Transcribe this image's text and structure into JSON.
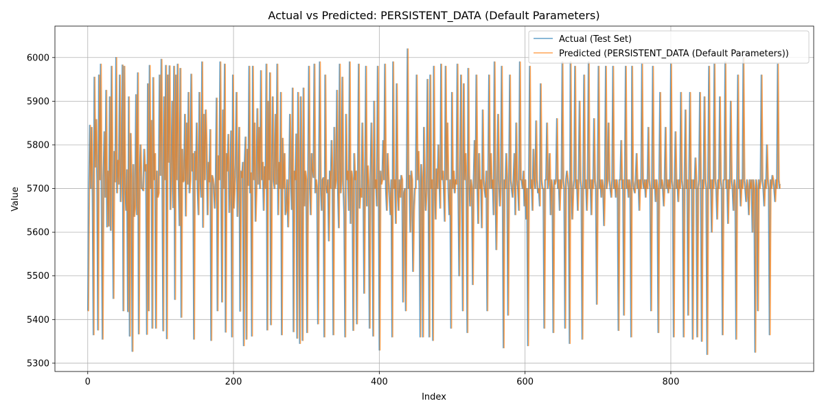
{
  "chart_data": {
    "type": "line",
    "title": "Actual vs Predicted: PERSISTENT_DATA (Default Parameters)",
    "xlabel": "Index",
    "ylabel": "Value",
    "xlim": [
      -45,
      996
    ],
    "ylim": [
      5281,
      6072
    ],
    "x_ticks": [
      0,
      200,
      400,
      600,
      800
    ],
    "y_ticks": [
      5300,
      5400,
      5500,
      5600,
      5700,
      5800,
      5900,
      6000
    ],
    "grid": true,
    "legend_position": "upper right",
    "n_points": 951,
    "series": [
      {
        "name": "Actual (Test Set)",
        "color": "#1f77b4",
        "opacity": 0.7,
        "values": [
          5420,
          5690,
          5845,
          5700,
          5840,
          5681,
          5365,
          5955,
          5749,
          5858,
          5720,
          5376,
          5960,
          5720,
          5985,
          5650,
          5355,
          5723,
          5830,
          5680,
          5925,
          5612,
          5740,
          5614,
          5910,
          5604,
          5980,
          5720,
          5448,
          5785,
          5715,
          6000,
          5690,
          5765,
          5710,
          5960,
          5670,
          5740,
          5983,
          5420,
          5980,
          5710,
          5650,
          5743,
          5418,
          5910,
          5362,
          5826,
          5720,
          5327,
          5755,
          5636,
          5660,
          5915,
          5640,
          5965,
          5367,
          5720,
          5800,
          5700,
          5700,
          5695,
          5790,
          5740,
          5755,
          5366,
          5940,
          5420,
          5982,
          5700,
          5856,
          5380,
          5954,
          5720,
          5780,
          5380,
          5740,
          5680,
          5690,
          5960,
          5730,
          5996,
          5720,
          5374,
          5910,
          5720,
          5982,
          5356,
          5960,
          5760,
          5981,
          5652,
          5730,
          5900,
          5656,
          5980,
          5446,
          5960,
          5720,
          5985,
          5720,
          5615,
          5975,
          5405,
          5790,
          5715,
          5720,
          5870,
          5637,
          5850,
          5710,
          5920,
          5690,
          5720,
          5962,
          5740,
          5780,
          5355,
          5785,
          5720,
          5850,
          5700,
          5640,
          5920,
          5720,
          5680,
          5990,
          5611,
          5870,
          5720,
          5880,
          5790,
          5640,
          5760,
          5715,
          5835,
          5352,
          5730,
          5722,
          5700,
          5655,
          5720,
          5907,
          5420,
          5775,
          5720,
          5990,
          5720,
          5440,
          5880,
          5700,
          5985,
          5371,
          5780,
          5740,
          5824,
          5645,
          5700,
          5832,
          5360,
          5960,
          5655,
          5700,
          5755,
          5920,
          5636,
          5710,
          5840,
          5419,
          5740,
          5725,
          5760,
          5340,
          5760,
          5818,
          5355,
          5790,
          5707,
          5980,
          5690,
          5736,
          5362,
          5980,
          5720,
          5850,
          5625,
          5700,
          5883,
          5710,
          5840,
          5700,
          5970,
          5720,
          5760,
          5650,
          5750,
          5700,
          5985,
          5376,
          5900,
          5720,
          5965,
          5388,
          5720,
          5910,
          5720,
          5700,
          5870,
          5710,
          5985,
          5640,
          5760,
          5700,
          5920,
          5365,
          5815,
          5700,
          5780,
          5640,
          5650,
          5720,
          5612,
          5700,
          5870,
          5738,
          5652,
          5930,
          5372,
          5740,
          5720,
          5825,
          5357,
          5920,
          5720,
          5345,
          5910,
          5720,
          5352,
          5930,
          5660,
          5740,
          5720,
          5370,
          5720,
          5980,
          5710,
          5640,
          5780,
          5740,
          5725,
          5985,
          5690,
          5720,
          5700,
          5390,
          5720,
          5990,
          5710,
          5650,
          5720,
          5725,
          5360,
          5960,
          5710,
          5690,
          5720,
          5580,
          5740,
          5700,
          5810,
          5720,
          5365,
          5840,
          5700,
          5720,
          5925,
          5700,
          5610,
          5985,
          5690,
          5720,
          5955,
          5700,
          5640,
          5360,
          5870,
          5720,
          5740,
          5650,
          5990,
          5620,
          5740,
          5720,
          5375,
          5780,
          5720,
          5740,
          5390,
          5720,
          5985,
          5655,
          5700,
          5680,
          5850,
          5720,
          5460,
          5720,
          5980,
          5660,
          5752,
          5700,
          5380,
          5720,
          5850,
          5720,
          5362,
          5900,
          5700,
          5720,
          5660,
          5980,
          5720,
          5330,
          5740,
          5710,
          5720,
          5810,
          5720,
          5985,
          5700,
          5650,
          5780,
          5720,
          5680,
          5640,
          5720,
          5360,
          5990,
          5700,
          5720,
          5620,
          5940,
          5700,
          5650,
          5720,
          5680,
          5730,
          5720,
          5440,
          5690,
          5700,
          5420,
          5720,
          6020,
          5700,
          5730,
          5600,
          5740,
          5720,
          5510,
          5650,
          5700,
          5700,
          5960,
          5720,
          5785,
          5700,
          5360,
          5755,
          5720,
          5360,
          5840,
          5720,
          5650,
          5700,
          5950,
          5720,
          5360,
          5960,
          5700,
          5720,
          5352,
          5980,
          5720,
          5630,
          5745,
          5700,
          5800,
          5720,
          5655,
          5985,
          5720,
          5740,
          5700,
          5625,
          5980,
          5720,
          5850,
          5700,
          5640,
          5720,
          5380,
          5920,
          5700,
          5740,
          5690,
          5720,
          5710,
          5985,
          5700,
          5500,
          5720,
          5960,
          5700,
          5420,
          5940,
          5720,
          5780,
          5700,
          5370,
          5975,
          5730,
          5660,
          5720,
          5700,
          5480,
          5720,
          5810,
          5700,
          5960,
          5720,
          5620,
          5780,
          5700,
          5720,
          5610,
          5880,
          5720,
          5700,
          5680,
          5740,
          5420,
          5720,
          5960,
          5700,
          5780,
          5700,
          5720,
          5640,
          5990,
          5720,
          5560,
          5700,
          5870,
          5720,
          5660,
          5720,
          5980,
          5700,
          5335,
          5720,
          5700,
          5780,
          5720,
          5410,
          5700,
          5960,
          5720,
          5700,
          5680,
          5720,
          5780,
          5640,
          5850,
          5720,
          5700,
          5650,
          5990,
          5720,
          5720,
          5700,
          5740,
          5660,
          5720,
          5630,
          5700,
          5340,
          5720,
          5980,
          5700,
          5720,
          5650,
          5790,
          5720,
          5700,
          5855,
          5720,
          5690,
          5700,
          5660,
          5940,
          5720,
          5700,
          5700,
          5380,
          5720,
          5720,
          5850,
          5700,
          5720,
          5780,
          5640,
          5720,
          5700,
          5370,
          5720,
          5710,
          5720,
          5860,
          5700,
          5720,
          5650,
          5720,
          5700,
          5990,
          5720,
          5700,
          5380,
          5720,
          5740,
          5720,
          5700,
          5345,
          5990,
          5720,
          5630,
          5700,
          5720,
          5980,
          5700,
          5720,
          5650,
          5720,
          5900,
          5720,
          5700,
          5355,
          5720,
          5960,
          5700,
          5720,
          5650,
          5720,
          5990,
          5700,
          5720,
          5640,
          5720,
          5700,
          5860,
          5720,
          5700,
          5435,
          5720,
          5980,
          5700,
          5720,
          5680,
          5720,
          5700,
          5615,
          5720,
          5980,
          5700,
          5720,
          5850,
          5720,
          5700,
          5680,
          5720,
          5980,
          5700,
          5720,
          5680,
          5720,
          5700,
          5375,
          5720,
          5720,
          5810,
          5700,
          5720,
          5410,
          5720,
          5980,
          5700,
          5720,
          5680,
          5720,
          5700,
          5360,
          5980,
          5720,
          5700,
          5690,
          5720,
          5780,
          5700,
          5720,
          5650,
          5720,
          5700,
          5985,
          5720,
          5700,
          5720,
          5680,
          5720,
          5700,
          5840,
          5720,
          5700,
          5420,
          5720,
          5980,
          5700,
          5720,
          5670,
          5720,
          5700,
          5370,
          5720,
          5920,
          5700,
          5720,
          5700,
          5660,
          5720,
          5840,
          5700,
          5720,
          5690,
          5720,
          5700,
          5985,
          5720,
          5700,
          5360,
          5720,
          5830,
          5700,
          5720,
          5670,
          5720,
          5700,
          5920,
          5720,
          5700,
          5360,
          5720,
          5880,
          5700,
          5720,
          5410,
          5720,
          5920,
          5700,
          5720,
          5355,
          5720,
          5700,
          5770,
          5720,
          5360,
          5700,
          5720,
          5920,
          5700,
          5350,
          5720,
          5700,
          5910,
          5720,
          5700,
          5320,
          5720,
          5980,
          5700,
          5720,
          5600,
          5720,
          5700,
          5985,
          5720,
          5700,
          5630,
          5720,
          5700,
          5910,
          5720,
          5700,
          5365,
          5720,
          5720,
          5990,
          5700,
          5720,
          5620,
          5720,
          5700,
          5900,
          5720,
          5700,
          5650,
          5720,
          5700,
          5355,
          5720,
          5960,
          5700,
          5720,
          5660,
          5720,
          5700,
          6000,
          5720,
          5700,
          5670,
          5720,
          5700,
          5640,
          5720,
          5700,
          5720,
          5600,
          5720,
          5700,
          5325,
          5720,
          5700,
          5420,
          5720,
          5700,
          5720,
          5960,
          5720,
          5700,
          5660,
          5720,
          5700,
          5800,
          5720,
          5700,
          5365,
          5720,
          5700,
          5730,
          5720,
          5700,
          5670,
          5720,
          5700,
          5985,
          5720,
          5700,
          5710
        ]
      },
      {
        "name": "Predicted (PERSISTENT_DATA (Default Parameters))",
        "color": "#ff7f0e",
        "opacity": 0.7,
        "lag": 1
      }
    ]
  }
}
